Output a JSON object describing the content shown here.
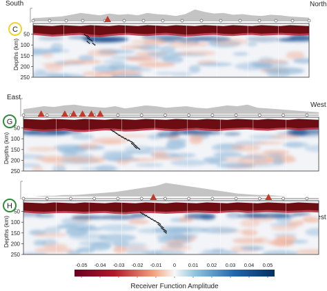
{
  "colors": {
    "red_dark": "#6b0d12",
    "red": "#b2182b",
    "blue_dark": "#1d4f8f",
    "topo": "#c4c4c4",
    "volcano": "#c0392b",
    "circle_C": "#f2d22e",
    "circle_G": "#2e8b3a",
    "circle_H": "#2e8b3a",
    "seismicity": "#111111"
  },
  "chart_data": [
    {
      "type": "heatmap",
      "panel_label": "C",
      "left_label": "South",
      "right_label": "North",
      "ylabel": "Depths (km)",
      "yticks": [
        50,
        100,
        150,
        200,
        250
      ],
      "ylim": [
        0,
        250
      ],
      "volcanoes": [
        0.27
      ],
      "stations": [
        0.0,
        0.06,
        0.12,
        0.18,
        0.26,
        0.33,
        0.4,
        0.47,
        0.54,
        0.61,
        0.68,
        0.75,
        0.82,
        0.88,
        0.94,
        1.0
      ],
      "topography": [
        0.15,
        0.2,
        0.25,
        0.3,
        0.45,
        0.6,
        0.5,
        0.4,
        0.55,
        0.45,
        0.5,
        0.4,
        0.6,
        0.5,
        0.45,
        0.35,
        0.5,
        0.9,
        0.7,
        0.55,
        0.6,
        0.45,
        0.5,
        0.4,
        0.35,
        0.45,
        0.4,
        0.3,
        0.25,
        0.2
      ],
      "moho_depth": [
        44,
        48,
        52,
        50,
        46,
        44,
        52,
        55,
        50,
        46,
        44,
        48,
        50,
        46,
        44,
        48,
        52,
        50,
        46,
        44,
        48,
        50,
        46,
        44,
        48,
        46,
        44,
        46,
        48,
        46
      ],
      "seismicity": [
        [
          0.19,
          55
        ],
        [
          0.2,
          62
        ],
        [
          0.2,
          70
        ],
        [
          0.21,
          78
        ],
        [
          0.2,
          88
        ],
        [
          0.22,
          96
        ]
      ]
    },
    {
      "type": "heatmap",
      "panel_label": "G",
      "left_label": "East",
      "right_label": "West",
      "ylabel": "Depths (km)",
      "yticks": [
        50,
        100,
        150,
        200,
        250
      ],
      "ylim": [
        0,
        250
      ],
      "volcanoes": [
        0.06,
        0.14,
        0.17,
        0.2,
        0.23,
        0.26
      ],
      "stations": [
        0.0,
        0.08,
        0.16,
        0.24,
        0.32,
        0.4,
        0.48,
        0.56,
        0.64,
        0.72,
        0.8,
        0.88,
        0.96
      ],
      "topography": [
        0.3,
        0.4,
        0.5,
        0.45,
        0.55,
        0.6,
        0.5,
        0.45,
        0.4,
        0.5,
        0.35,
        0.45,
        0.55,
        0.5,
        0.4,
        0.45,
        0.5,
        0.4,
        0.35,
        0.45,
        0.55,
        0.5,
        0.6,
        0.4,
        0.35,
        0.3,
        0.25,
        0.2,
        0.15,
        0.1
      ],
      "moho_depth": [
        50,
        55,
        58,
        56,
        52,
        58,
        60,
        56,
        52,
        54,
        58,
        56,
        52,
        50,
        54,
        56,
        52,
        50,
        54,
        56,
        52,
        50,
        48,
        52,
        54,
        50,
        48,
        52,
        50,
        48
      ],
      "seismicity": [
        [
          0.3,
          62
        ],
        [
          0.31,
          70
        ],
        [
          0.32,
          80
        ],
        [
          0.33,
          88
        ],
        [
          0.34,
          96
        ],
        [
          0.35,
          104
        ],
        [
          0.36,
          110
        ],
        [
          0.37,
          118
        ],
        [
          0.37,
          126
        ],
        [
          0.38,
          132
        ],
        [
          0.38,
          140
        ],
        [
          0.39,
          145
        ]
      ]
    },
    {
      "type": "heatmap",
      "panel_label": "H",
      "left_label": "",
      "right_label": "West",
      "ylabel": "Depths (km)",
      "yticks": [
        50,
        100,
        150,
        200,
        250
      ],
      "ylim": [
        0,
        250
      ],
      "volcanoes": [
        0.44,
        0.83
      ],
      "stations": [
        0.0,
        0.08,
        0.16,
        0.24,
        0.32,
        0.4,
        0.48,
        0.56,
        0.64,
        0.72,
        0.8,
        0.88,
        0.96
      ],
      "topography": [
        0.0,
        0.0,
        0.05,
        0.05,
        0.1,
        0.1,
        0.15,
        0.2,
        0.25,
        0.3,
        0.4,
        0.5,
        0.6,
        0.7,
        0.9,
        0.8,
        0.7,
        0.6,
        0.5,
        0.4,
        0.3,
        0.2,
        0.15,
        0.1,
        0.1,
        0.05,
        0.0,
        0.0,
        0.0,
        0.0
      ],
      "moho_depth": [
        46,
        50,
        52,
        50,
        48,
        50,
        52,
        50,
        48,
        52,
        54,
        50,
        48,
        50,
        52,
        50,
        48,
        46,
        48,
        50,
        46,
        44,
        48,
        46,
        44,
        46,
        48,
        46,
        44,
        46
      ],
      "seismicity": [
        [
          0.4,
          58
        ],
        [
          0.41,
          66
        ],
        [
          0.42,
          74
        ],
        [
          0.43,
          82
        ],
        [
          0.44,
          90
        ],
        [
          0.45,
          98
        ],
        [
          0.46,
          106
        ],
        [
          0.46,
          114
        ],
        [
          0.47,
          122
        ],
        [
          0.47,
          130
        ],
        [
          0.48,
          138
        ],
        [
          0.48,
          146
        ]
      ]
    }
  ],
  "colorbar": {
    "ticks": [
      "-0.05",
      "-0.04",
      "-0.03",
      "-0.02",
      "-0.01",
      "0",
      "0.01",
      "0.02",
      "0.03",
      "0.04",
      "0.05"
    ],
    "label": "Receiver Function Amplitude"
  }
}
